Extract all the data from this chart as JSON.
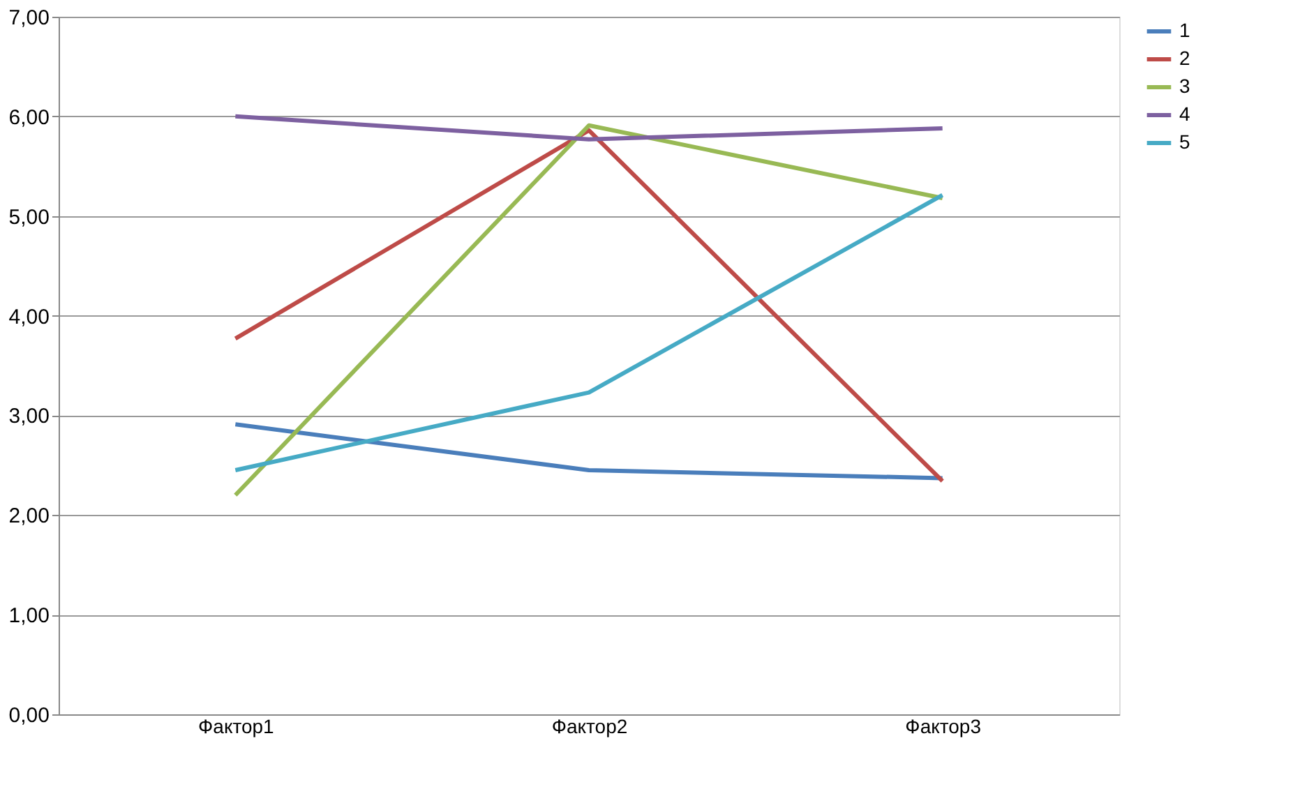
{
  "chart_data": {
    "type": "line",
    "categories": [
      "Фактор1",
      "Фактор2",
      "Фактор3"
    ],
    "series": [
      {
        "name": "1",
        "color": "#4a7ebb",
        "values": [
          2.91,
          2.45,
          2.37
        ]
      },
      {
        "name": "2",
        "color": "#be4b48",
        "values": [
          3.77,
          5.86,
          2.34
        ]
      },
      {
        "name": "3",
        "color": "#98b954",
        "values": [
          2.2,
          5.91,
          5.18
        ]
      },
      {
        "name": "4",
        "color": "#7d60a0",
        "values": [
          6.0,
          5.77,
          5.88
        ]
      },
      {
        "name": "5",
        "color": "#46aac5",
        "values": [
          2.45,
          3.23,
          5.21
        ]
      }
    ],
    "ylim": [
      0,
      7
    ],
    "yticks": [
      {
        "value": 0,
        "label": "0,00"
      },
      {
        "value": 1,
        "label": "1,00"
      },
      {
        "value": 2,
        "label": "2,00"
      },
      {
        "value": 3,
        "label": "3,00"
      },
      {
        "value": 4,
        "label": "4,00"
      },
      {
        "value": 5,
        "label": "5,00"
      },
      {
        "value": 6,
        "label": "6,00"
      },
      {
        "value": 7,
        "label": "7,00"
      }
    ],
    "grid": "y",
    "legend": "right",
    "marker": "none",
    "line_style": "solid"
  }
}
